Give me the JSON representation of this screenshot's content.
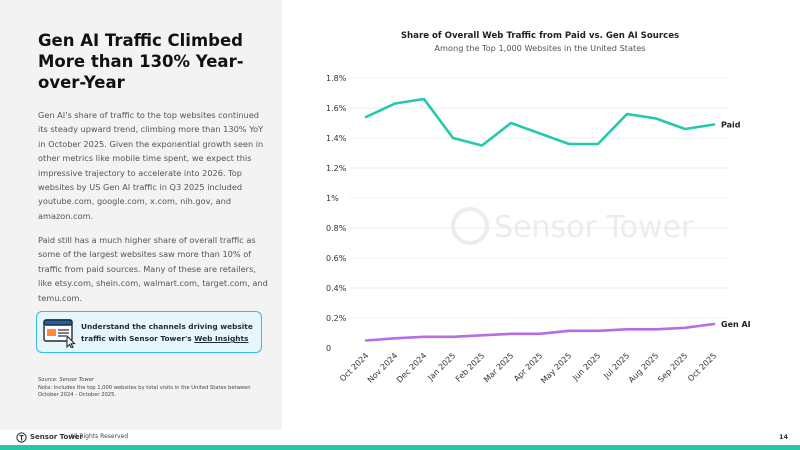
{
  "slide": {
    "headline": "Gen AI Traffic Climbed More than 130% Year-over-Year",
    "paragraph1": "Gen AI's share of traffic to the top websites continued its steady upward trend, climbing more than 130% YoY in October 2025. Given the exponential growth seen in other metrics like mobile time spent, we expect this impressive trajectory to accelerate into 2026. Top websites by US Gen AI traffic in Q3 2025 included youtube.com, google.com, x.com, nih.gov, and amazon.com.",
    "paragraph2": "Paid still has a much higher share of overall traffic as some of the largest websites saw more than 10% of traffic from paid sources. Many of these are retailers, like etsy.com, shein.com, walmart.com, target.com, and temu.com.",
    "callout": {
      "text_before": "Understand the channels driving website traffic with Sensor Tower's ",
      "link_text": "Web Insights",
      "icon": "browser-window-cursor-icon"
    },
    "source_label": "Source: Sensor Tower",
    "source_note": "Note: Includes the top 1,000 websites by total visits in the United States between October 2024 - October 2025.",
    "watermark": "Sensor Tower",
    "footer": {
      "logo_text": "Sensor Tower",
      "rights": "All Rights Reserved",
      "page_number": "14"
    },
    "colors": {
      "paid": "#22c9ad",
      "gen_ai": "#b46ee6",
      "accent_bar": "#27c7a6",
      "callout_border": "#38b8e4"
    }
  },
  "chart_data": {
    "type": "line",
    "title": "Share of Overall Web Traffic from Paid vs. Gen AI Sources",
    "subtitle": "Among the Top 1,000 Websites in the United States",
    "categories": [
      "Oct 2024",
      "Nov 2024",
      "Dec 2024",
      "Jan 2025",
      "Feb 2025",
      "Mar 2025",
      "Apr 2025",
      "May 2025",
      "Jun 2025",
      "Jul 2025",
      "Aug 2025",
      "Sep 2025",
      "Oct 2025"
    ],
    "series": [
      {
        "name": "Paid",
        "values": [
          1.54,
          1.63,
          1.66,
          1.4,
          1.35,
          1.5,
          1.43,
          1.36,
          1.36,
          1.56,
          1.53,
          1.46,
          1.49
        ]
      },
      {
        "name": "Gen AI",
        "values": [
          0.05,
          0.065,
          0.075,
          0.075,
          0.085,
          0.095,
          0.095,
          0.115,
          0.115,
          0.125,
          0.125,
          0.135,
          0.16
        ]
      }
    ],
    "y_ticks": [
      "0",
      "0.2%",
      "0.4%",
      "0.6%",
      "0.8%",
      "1%",
      "1.2%",
      "1.4%",
      "1.6%",
      "1.8%"
    ],
    "ylim": [
      0,
      1.8
    ],
    "grid": true,
    "legend": "inline labels at line ends"
  }
}
